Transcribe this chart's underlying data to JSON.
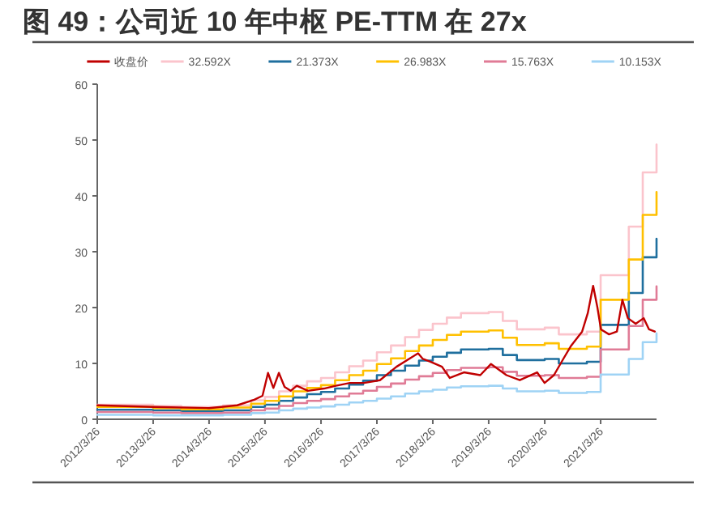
{
  "chart_data": {
    "type": "line",
    "title": "图 49：公司近 10 年中枢 PE-TTM 在 27x",
    "xlim": [
      "2012-03-26",
      "2022-03-26"
    ],
    "xticks": [
      {
        "value": "2012-03-26",
        "label": "2012/3/26"
      },
      {
        "value": "2013-03-26",
        "label": "2013/3/26"
      },
      {
        "value": "2014-03-26",
        "label": "2014/3/26"
      },
      {
        "value": "2015-03-26",
        "label": "2015/3/26"
      },
      {
        "value": "2016-03-26",
        "label": "2016/3/26"
      },
      {
        "value": "2017-03-26",
        "label": "2017/3/26"
      },
      {
        "value": "2018-03-26",
        "label": "2018/3/26"
      },
      {
        "value": "2019-03-26",
        "label": "2019/3/26"
      },
      {
        "value": "2020-03-26",
        "label": "2020/3/26"
      },
      {
        "value": "2021-03-26",
        "label": "2021/3/26"
      }
    ],
    "ylim": [
      0,
      60
    ],
    "yticks": [
      0,
      10,
      20,
      30,
      40,
      50,
      60
    ],
    "grid": false,
    "legend": "top",
    "marker": "none",
    "line_style": "solid",
    "series": [
      {
        "name": "收盘价",
        "color": "#c00000",
        "x": [
          "2012-03-26",
          "2013-03-26",
          "2014-03-26",
          "2014-09-26",
          "2015-01-15",
          "2015-03-10",
          "2015-04-15",
          "2015-05-20",
          "2015-06-25",
          "2015-08-01",
          "2015-09-10",
          "2015-10-20",
          "2016-01-01",
          "2016-04-15",
          "2016-07-01",
          "2016-10-01",
          "2017-01-01",
          "2017-04-15",
          "2017-08-01",
          "2017-12-20",
          "2018-01-20",
          "2018-03-10",
          "2018-05-25",
          "2018-07-15",
          "2018-10-15",
          "2019-01-30",
          "2019-04-10",
          "2019-07-20",
          "2019-10-15",
          "2020-02-05",
          "2020-03-25",
          "2020-05-25",
          "2020-07-25",
          "2020-09-15",
          "2020-11-25",
          "2021-01-01",
          "2021-02-05",
          "2021-03-05",
          "2021-03-28",
          "2021-05-20",
          "2021-07-10",
          "2021-08-15",
          "2021-09-20",
          "2021-11-10",
          "2022-01-01",
          "2022-02-05",
          "2022-03-15"
        ],
        "values": [
          2.5,
          2.2,
          2.0,
          2.5,
          3.5,
          4.2,
          8.3,
          5.6,
          8.3,
          5.8,
          5.1,
          6.0,
          5.1,
          5.5,
          6.0,
          6.5,
          6.5,
          7.0,
          9.4,
          11.8,
          10.8,
          10.3,
          9.4,
          7.4,
          8.4,
          7.9,
          9.9,
          7.9,
          7.0,
          8.4,
          6.5,
          7.9,
          10.8,
          13.2,
          15.7,
          19.0,
          23.9,
          20.0,
          16.1,
          15.2,
          15.7,
          21.4,
          18.1,
          17.1,
          18.1,
          16.1,
          15.7
        ]
      },
      {
        "name": "32.592X",
        "type": "step",
        "color": "#fbc4cc",
        "values": [
          2.6,
          2.4,
          2.2,
          2.5,
          3.4,
          4.0,
          5.0,
          6.0,
          6.8,
          7.4,
          8.4,
          9.5,
          10.5,
          12.0,
          13.2,
          14.7,
          16.0,
          17.1,
          18.2,
          19.0,
          19.2,
          17.6,
          16.1,
          16.4,
          15.2,
          15.7,
          25.8,
          34.5,
          44.2,
          49.2
        ]
      },
      {
        "name": "21.373X",
        "type": "step",
        "color": "#1f6f9e",
        "values": [
          1.7,
          1.6,
          1.4,
          1.6,
          2.2,
          2.6,
          3.3,
          3.9,
          4.5,
          4.9,
          5.5,
          6.2,
          6.9,
          7.9,
          8.7,
          9.6,
          10.5,
          11.2,
          11.9,
          12.5,
          12.6,
          11.5,
          10.6,
          10.8,
          10.0,
          10.3,
          16.9,
          22.6,
          29.0,
          32.3
        ]
      },
      {
        "name": "26.983X",
        "type": "step",
        "color": "#ffc000",
        "values": [
          2.2,
          2.0,
          1.8,
          2.1,
          2.8,
          3.3,
          4.1,
          5.0,
          5.6,
          6.1,
          7.0,
          7.9,
          8.7,
          9.9,
          10.9,
          12.2,
          13.2,
          14.2,
          15.1,
          15.7,
          15.9,
          14.6,
          13.3,
          13.6,
          12.6,
          13.0,
          21.4,
          28.6,
          36.6,
          40.7
        ]
      },
      {
        "name": "15.763X",
        "type": "step",
        "color": "#e07b96",
        "values": [
          1.3,
          1.2,
          1.1,
          1.2,
          1.6,
          1.9,
          2.4,
          2.9,
          3.3,
          3.6,
          4.1,
          4.6,
          5.1,
          5.8,
          6.4,
          7.1,
          7.7,
          8.3,
          8.8,
          9.2,
          9.3,
          8.5,
          7.8,
          7.9,
          7.4,
          7.6,
          12.5,
          16.7,
          21.4,
          23.8
        ]
      },
      {
        "name": "10.153X",
        "type": "step",
        "color": "#9fd3f5",
        "values": [
          0.8,
          0.7,
          0.7,
          0.8,
          1.1,
          1.2,
          1.6,
          1.9,
          2.1,
          2.3,
          2.6,
          3.0,
          3.3,
          3.7,
          4.1,
          4.6,
          5.0,
          5.3,
          5.7,
          5.9,
          6.0,
          5.5,
          5.0,
          5.1,
          4.7,
          4.9,
          8.0,
          10.8,
          13.8,
          15.4
        ]
      }
    ],
    "x": [
      "2012-03-26",
      "2013-03-26",
      "2013-09-26",
      "2014-06-26",
      "2014-12-26",
      "2015-03-26",
      "2015-06-26",
      "2015-09-26",
      "2015-12-26",
      "2016-03-26",
      "2016-06-26",
      "2016-09-26",
      "2016-12-26",
      "2017-03-26",
      "2017-06-26",
      "2017-09-26",
      "2017-12-26",
      "2018-03-26",
      "2018-06-26",
      "2018-09-26",
      "2019-03-26",
      "2019-06-26",
      "2019-09-26",
      "2020-03-26",
      "2020-06-26",
      "2020-12-26",
      "2021-03-26",
      "2021-09-26",
      "2021-12-26",
      "2022-03-26"
    ]
  }
}
